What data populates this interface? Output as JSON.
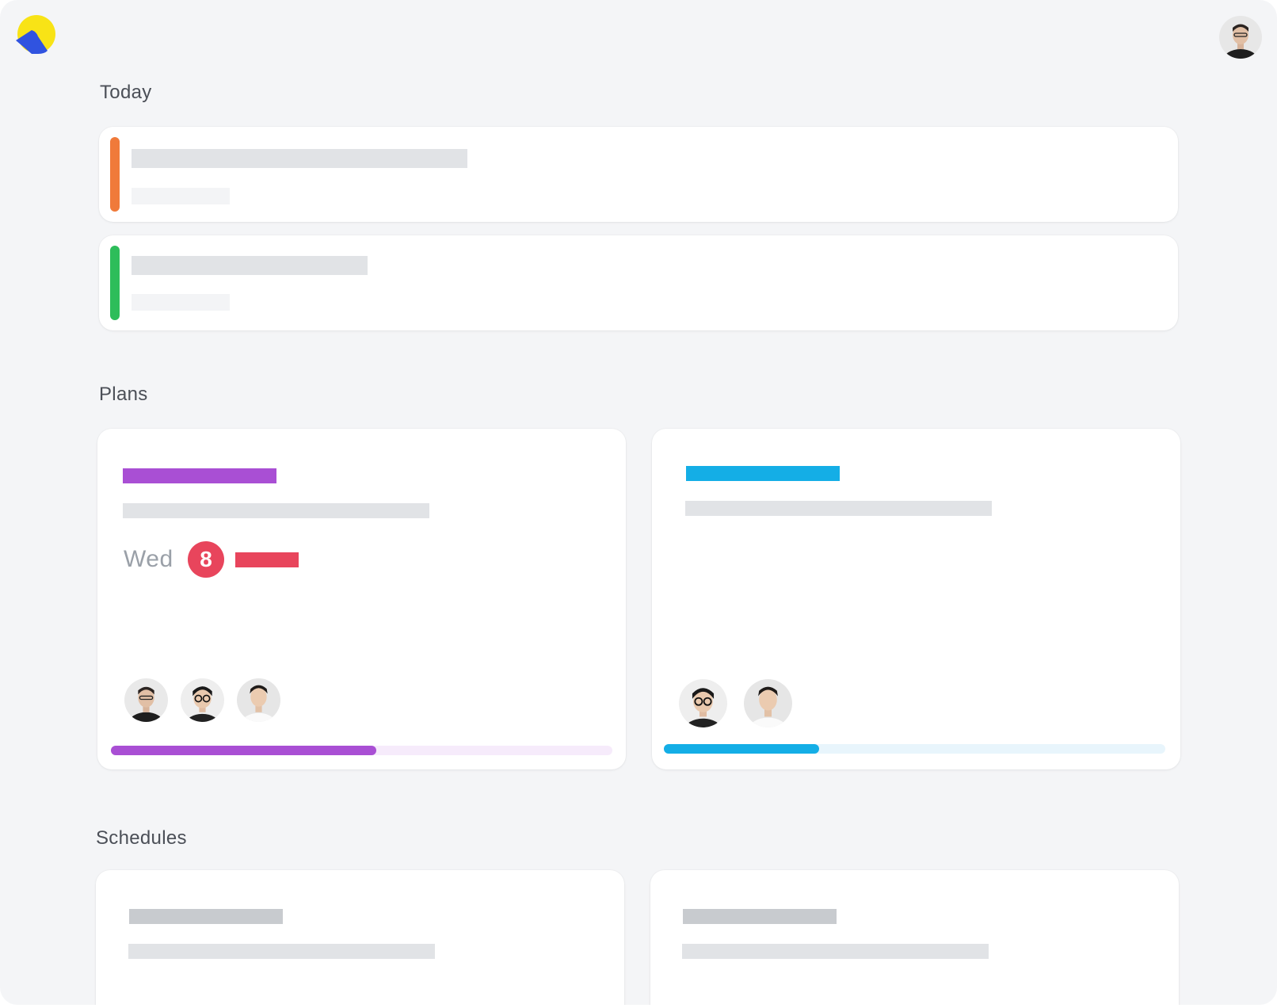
{
  "app": {
    "logo_icon": "app-logo-icon",
    "user_avatar_icon": "user-avatar"
  },
  "sections": {
    "today": {
      "title": "Today"
    },
    "plans": {
      "title": "Plans"
    },
    "schedules": {
      "title": "Schedules"
    }
  },
  "today_items": [
    {
      "accent": "#f07a3a"
    },
    {
      "accent": "#2dbd5a"
    }
  ],
  "plans": [
    {
      "accent": "#a94fd4",
      "track": "#f6ebfb",
      "day": "Wed",
      "date": "8",
      "event_color": "#e8455c",
      "members": [
        "avatar-man-dark-shirt",
        "avatar-man-glasses",
        "avatar-man-white-shirt"
      ],
      "progress": 0.53
    },
    {
      "accent": "#14aee6",
      "track": "#e8f5fc",
      "members": [
        "avatar-man-glasses",
        "avatar-man-white-shirt"
      ],
      "progress": 0.31
    }
  ]
}
